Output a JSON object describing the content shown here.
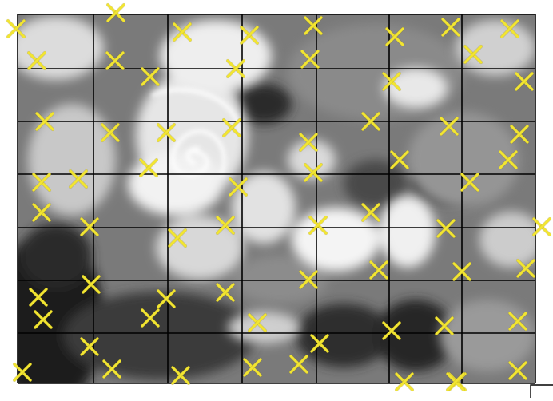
{
  "image": {
    "subject": "satellite-imagery",
    "colors": {
      "background": "#ffffff",
      "imagery_dark": "#202020",
      "imagery_mid": "#6e6e6e",
      "imagery_light": "#d8d8d8",
      "cloud": "#f4f4f4",
      "grid_line": "#000000",
      "marker": "#f2e531",
      "marker_edge": "#8a7a10"
    },
    "grid": {
      "columns": 7,
      "rows": 7
    },
    "marker_count": 69,
    "marker_icon": "x-cross-icon"
  }
}
